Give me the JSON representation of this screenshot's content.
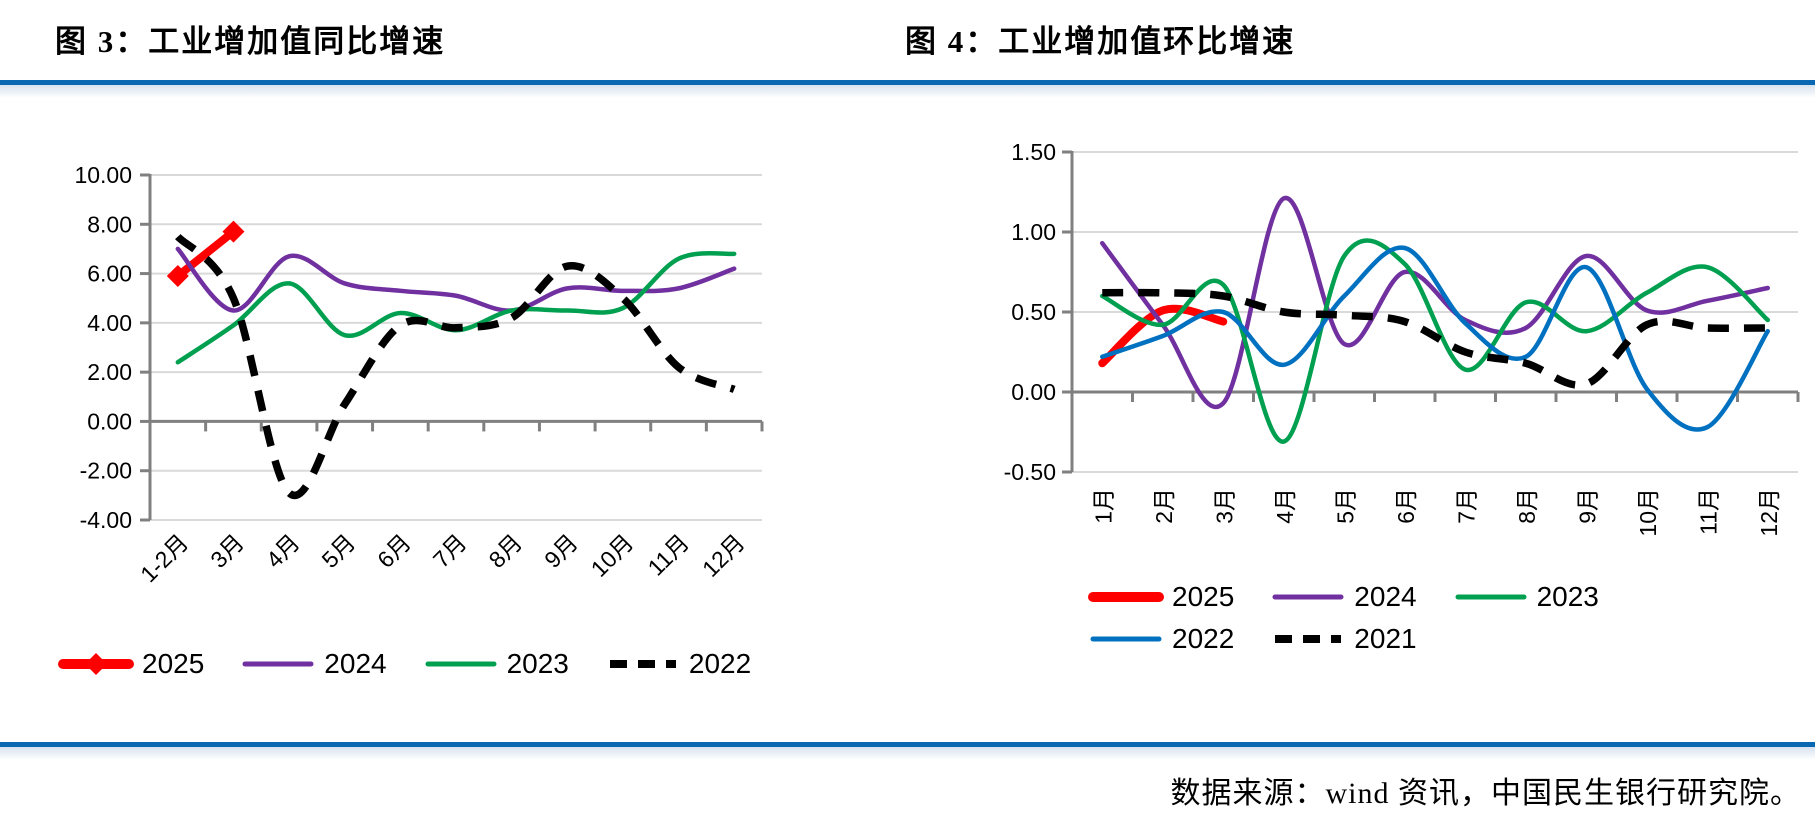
{
  "page": {
    "source_note": "数据来源：wind 资讯，中国民生银行研究院。"
  },
  "colors": {
    "rule_blue": "#0a67b1",
    "rule_fade": "#d7e2ee",
    "grid": "#d9d9d9",
    "axis": "#808080",
    "red_2025": "#ff0000",
    "purple_2024": "#7030a0",
    "green_2023": "#00a050",
    "blue_2022": "#0070c0",
    "black_dashed": "#000000"
  },
  "chart_data": [
    {
      "id": "figure3",
      "type": "line",
      "title": "图 3：工业增加值同比增速",
      "categories": [
        "1-2月",
        "3月",
        "4月",
        "5月",
        "6月",
        "7月",
        "8月",
        "9月",
        "10月",
        "11月",
        "12月"
      ],
      "ylim": [
        -4,
        10
      ],
      "yticks": [
        10,
        8,
        6,
        4,
        2,
        0,
        -2,
        -4
      ],
      "ytick_labels": [
        "10.00",
        "8.00",
        "6.00",
        "4.00",
        "2.00",
        "0.00",
        "-2.00",
        "-4.00"
      ],
      "grid": true,
      "legend_position": "bottom",
      "legend_rows": [
        [
          "2025",
          "2024",
          "2023",
          "2022"
        ]
      ],
      "series": [
        {
          "name": "2025",
          "color": "#ff0000",
          "width": 8,
          "marker": "diamond",
          "values": [
            5.9,
            7.7
          ]
        },
        {
          "name": "2024",
          "color": "#7030a0",
          "width": 4.5,
          "values": [
            7.0,
            4.5,
            6.7,
            5.6,
            5.3,
            5.1,
            4.5,
            5.4,
            5.3,
            5.4,
            6.2
          ]
        },
        {
          "name": "2023",
          "color": "#00a050",
          "width": 4.5,
          "values": [
            2.4,
            3.9,
            5.6,
            3.5,
            4.4,
            3.7,
            4.5,
            4.5,
            4.6,
            6.6,
            6.8
          ]
        },
        {
          "name": "2022",
          "color": "#000000",
          "width": 7.5,
          "dash": true,
          "values": [
            7.5,
            5.0,
            -2.9,
            0.7,
            3.9,
            3.8,
            4.2,
            6.3,
            5.0,
            2.2,
            1.3
          ]
        }
      ]
    },
    {
      "id": "figure4",
      "type": "line",
      "title": "图 4：工业增加值环比增速",
      "categories": [
        "1月",
        "2月",
        "3月",
        "4月",
        "5月",
        "6月",
        "7月",
        "8月",
        "9月",
        "10月",
        "11月",
        "12月"
      ],
      "ylim": [
        -0.5,
        1.5
      ],
      "yticks": [
        1.5,
        1.0,
        0.5,
        0.0,
        -0.5
      ],
      "ytick_labels": [
        "1.50",
        "1.00",
        "0.50",
        "0.00",
        "-0.50"
      ],
      "grid": true,
      "legend_position": "bottom",
      "legend_rows": [
        [
          "2025",
          "2024",
          "2023"
        ],
        [
          "2022",
          "2021"
        ]
      ],
      "series": [
        {
          "name": "2025",
          "color": "#ff0000",
          "width": 8,
          "values": [
            0.18,
            0.51,
            0.44
          ]
        },
        {
          "name": "2024",
          "color": "#7030a0",
          "width": 4.5,
          "values": [
            0.93,
            0.42,
            -0.07,
            1.21,
            0.3,
            0.75,
            0.45,
            0.4,
            0.85,
            0.51,
            0.57,
            0.65
          ]
        },
        {
          "name": "2023",
          "color": "#00a050",
          "width": 4.5,
          "values": [
            0.6,
            0.42,
            0.67,
            -0.31,
            0.85,
            0.8,
            0.14,
            0.56,
            0.38,
            0.62,
            0.78,
            0.45
          ]
        },
        {
          "name": "2022",
          "color": "#0070c0",
          "width": 4.5,
          "values": [
            0.22,
            0.35,
            0.5,
            0.17,
            0.6,
            0.9,
            0.43,
            0.22,
            0.78,
            0.02,
            -0.22,
            0.38
          ]
        },
        {
          "name": "2021",
          "color": "#000000",
          "width": 7.5,
          "dash": true,
          "values": [
            0.62,
            0.62,
            0.6,
            0.5,
            0.48,
            0.44,
            0.25,
            0.18,
            0.05,
            0.42,
            0.4,
            0.4
          ]
        }
      ]
    }
  ]
}
